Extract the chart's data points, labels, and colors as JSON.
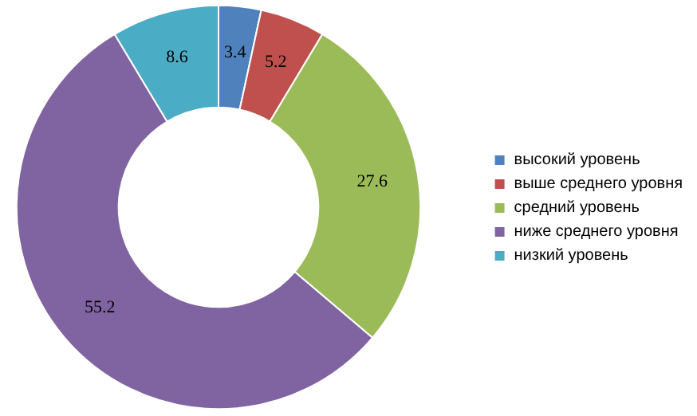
{
  "chart_data": {
    "type": "donut",
    "categories": [
      "высокий уровень",
      "выше среднего уровня",
      "средний уровень",
      "ниже среднего уровня",
      "низкий уровень"
    ],
    "values": [
      3.4,
      5.2,
      27.6,
      55.2,
      8.6
    ],
    "colors": [
      "#4f81bd",
      "#c0504d",
      "#9bbb59",
      "#8064a2",
      "#4bacc6"
    ],
    "data_labels": true,
    "legend": "right"
  }
}
